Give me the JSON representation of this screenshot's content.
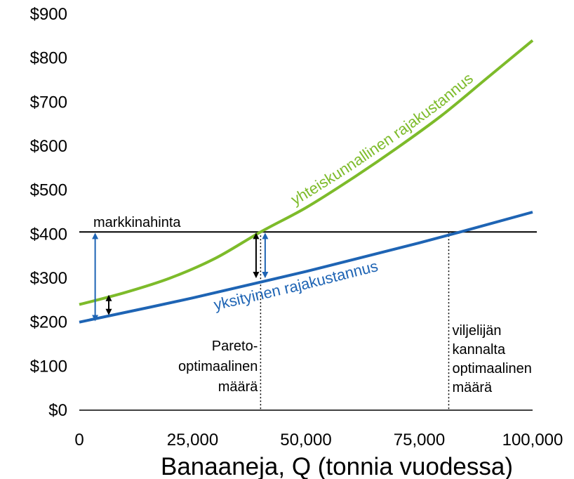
{
  "chart_data": {
    "type": "line",
    "title": "",
    "xlabel": "Banaaneja, Q (tonnia vuodessa)",
    "ylabel": "",
    "xlim": [
      0,
      100000
    ],
    "ylim": [
      0,
      900
    ],
    "grid": false,
    "x_ticks": [
      "0",
      "25,000",
      "50,000",
      "75,000",
      "100,000"
    ],
    "y_ticks": [
      "$0",
      "$100",
      "$200",
      "$300",
      "$400",
      "$500",
      "$600",
      "$700",
      "$800",
      "$900"
    ],
    "series": [
      {
        "name": "yhteiskunnallinen rajakustannus",
        "color": "#7dbb2a",
        "x": [
          0,
          10000,
          20000,
          30000,
          40000,
          50000,
          60000,
          70000,
          80000,
          90000,
          100000
        ],
        "y": [
          240,
          267,
          300,
          345,
          405,
          460,
          525,
          595,
          670,
          755,
          840
        ]
      },
      {
        "name": "yksityinen rajakustannus",
        "color": "#1e64b4",
        "x": [
          0,
          25000,
          50000,
          75000,
          100000
        ],
        "y": [
          200,
          255,
          315,
          380,
          450
        ]
      }
    ],
    "market_price": {
      "label": "markkinahinta",
      "value": 405
    },
    "pareto_optimum": {
      "x": 40000,
      "label_lines": [
        "Pareto-",
        "optimaalinen",
        "määrä"
      ]
    },
    "farmer_optimum": {
      "x": 81500,
      "label_lines": [
        "viljelijän",
        "kannalta",
        "optimaalinen",
        "määrä"
      ]
    },
    "arrows": [
      {
        "x": 3500,
        "from": 200,
        "to": 405,
        "color": "#1e64b4"
      },
      {
        "x": 6500,
        "from": 214,
        "to": 264,
        "color": "#000000"
      },
      {
        "x": 39000,
        "from": 298,
        "to": 405,
        "color": "#000000"
      },
      {
        "x": 41000,
        "from": 298,
        "to": 405,
        "color": "#1e64b4"
      }
    ]
  }
}
